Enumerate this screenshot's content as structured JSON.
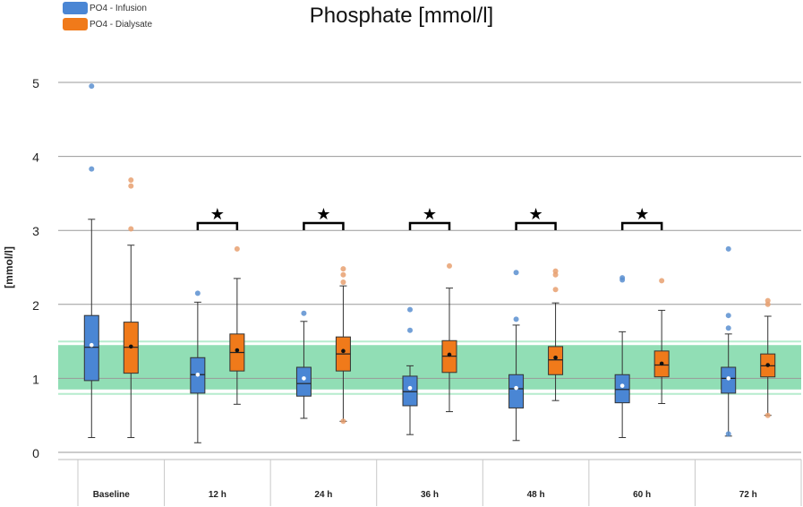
{
  "chart_data": {
    "type": "box",
    "title": "Phosphate [mmol/l]",
    "xlabel": "",
    "ylabel": "[mmol/l]",
    "ylim": [
      0,
      5
    ],
    "yticks": [
      0,
      1,
      2,
      3,
      4,
      5
    ],
    "grid": true,
    "legend_position": "top-left",
    "categories": [
      "Baseline",
      "12 h",
      "24 h",
      "36 h",
      "48 h",
      "60 h",
      "72 h"
    ],
    "reference_band": {
      "low": 0.85,
      "high": 1.45,
      "color": "#7ed8a8"
    },
    "series": [
      {
        "name": "PO4 - Infusion",
        "color": "#4a86d4",
        "boxes": [
          {
            "min": 0.2,
            "q1": 0.97,
            "median": 1.42,
            "q3": 1.85,
            "max": 3.15,
            "mean": 1.45,
            "outliers": [
              3.83,
              4.95
            ]
          },
          {
            "min": 0.13,
            "q1": 0.8,
            "median": 1.05,
            "q3": 1.28,
            "max": 2.03,
            "mean": 1.05,
            "outliers": [
              2.15
            ]
          },
          {
            "min": 0.46,
            "q1": 0.76,
            "median": 0.93,
            "q3": 1.15,
            "max": 1.77,
            "mean": 1.0,
            "outliers": [
              1.88
            ]
          },
          {
            "min": 0.24,
            "q1": 0.63,
            "median": 0.82,
            "q3": 1.03,
            "max": 1.17,
            "mean": 0.87,
            "outliers": [
              1.65,
              1.93
            ]
          },
          {
            "min": 0.16,
            "q1": 0.6,
            "median": 0.86,
            "q3": 1.05,
            "max": 1.72,
            "mean": 0.87,
            "outliers": [
              1.8,
              2.43
            ]
          },
          {
            "min": 0.2,
            "q1": 0.67,
            "median": 0.85,
            "q3": 1.05,
            "max": 1.63,
            "mean": 0.9,
            "outliers": [
              2.33,
              2.36
            ]
          },
          {
            "min": 0.22,
            "q1": 0.8,
            "median": 1.0,
            "q3": 1.15,
            "max": 1.6,
            "mean": 1.0,
            "outliers": [
              1.68,
              1.85,
              2.75,
              0.25
            ]
          }
        ]
      },
      {
        "name": "PO4 - Dialysate",
        "color": "#f07a1a",
        "boxes": [
          {
            "min": 0.2,
            "q1": 1.07,
            "median": 1.42,
            "q3": 1.76,
            "max": 2.8,
            "mean": 1.43,
            "outliers": [
              3.02,
              3.6,
              3.68
            ]
          },
          {
            "min": 0.65,
            "q1": 1.1,
            "median": 1.35,
            "q3": 1.6,
            "max": 2.35,
            "mean": 1.38,
            "outliers": [
              2.75
            ]
          },
          {
            "min": 0.42,
            "q1": 1.1,
            "median": 1.33,
            "q3": 1.56,
            "max": 2.25,
            "mean": 1.37,
            "outliers": [
              2.3,
              2.4,
              2.48,
              0.42
            ]
          },
          {
            "min": 0.55,
            "q1": 1.08,
            "median": 1.3,
            "q3": 1.51,
            "max": 2.22,
            "mean": 1.32,
            "outliers": [
              2.52
            ]
          },
          {
            "min": 0.7,
            "q1": 1.05,
            "median": 1.25,
            "q3": 1.43,
            "max": 2.02,
            "mean": 1.28,
            "outliers": [
              2.2,
              2.4,
              2.45
            ]
          },
          {
            "min": 0.66,
            "q1": 1.02,
            "median": 1.18,
            "q3": 1.37,
            "max": 1.92,
            "mean": 1.2,
            "outliers": [
              2.32
            ]
          },
          {
            "min": 0.5,
            "q1": 1.02,
            "median": 1.17,
            "q3": 1.33,
            "max": 1.84,
            "mean": 1.18,
            "outliers": [
              2.0,
              2.05,
              0.5
            ]
          }
        ]
      }
    ],
    "significance": [
      {
        "category": "12 h",
        "marker": "★",
        "y": 3.1
      },
      {
        "category": "24 h",
        "marker": "★",
        "y": 3.1
      },
      {
        "category": "36 h",
        "marker": "★",
        "y": 3.1
      },
      {
        "category": "48 h",
        "marker": "★",
        "y": 3.1
      },
      {
        "category": "60 h",
        "marker": "★",
        "y": 3.1
      }
    ]
  }
}
